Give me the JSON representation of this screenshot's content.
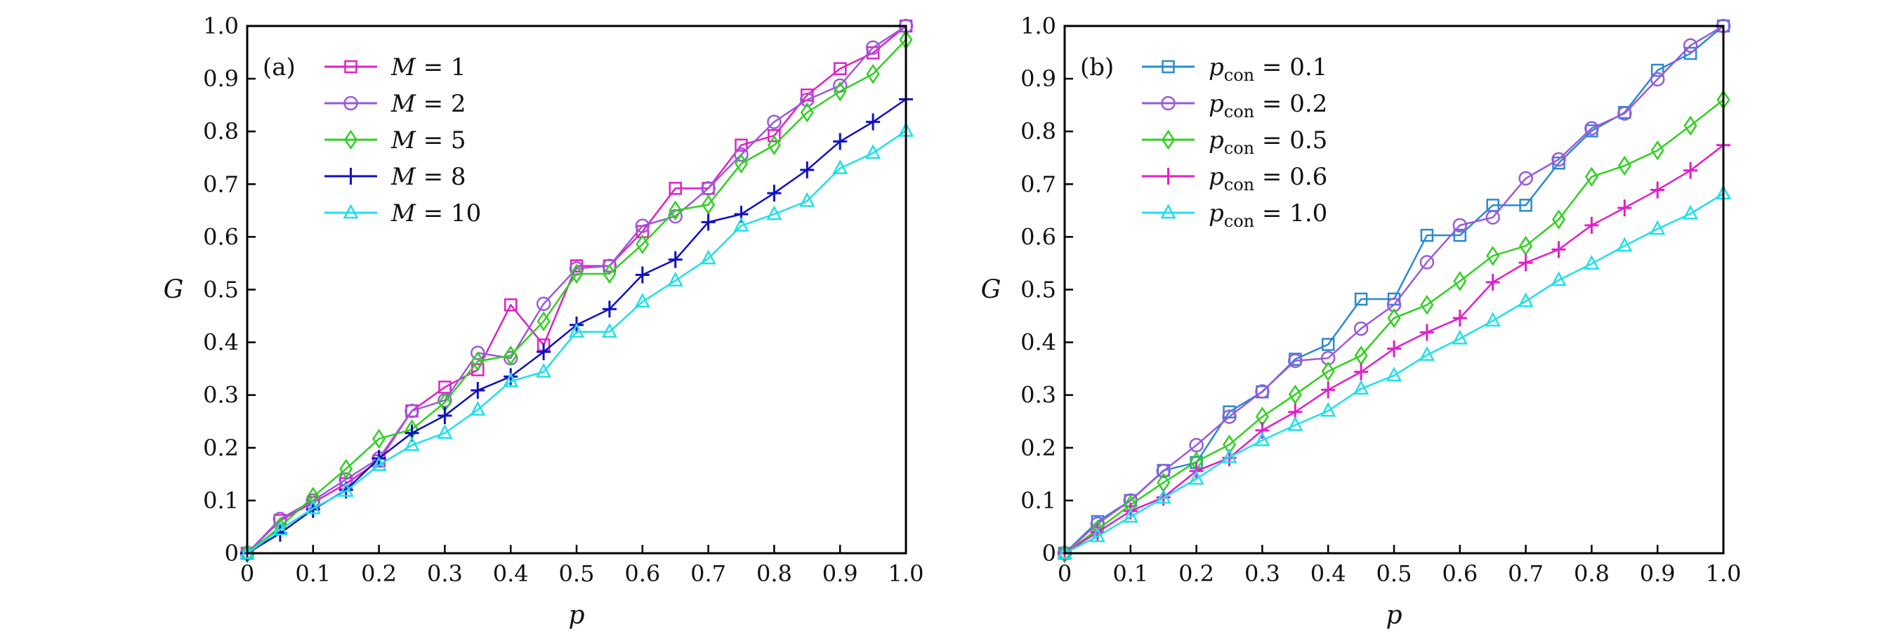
{
  "chart_data": [
    {
      "type": "line",
      "panel_tag": "(a)",
      "xlabel": "p",
      "ylabel": "G",
      "xlim": [
        0,
        1.0
      ],
      "ylim": [
        0,
        1.0
      ],
      "xticks": [
        "0",
        "0.1",
        "0.2",
        "0.3",
        "0.4",
        "0.5",
        "0.6",
        "0.7",
        "0.8",
        "0.9",
        "1.0"
      ],
      "yticks": [
        "0",
        "0.1",
        "0.2",
        "0.3",
        "0.4",
        "0.5",
        "0.6",
        "0.7",
        "0.8",
        "0.9",
        "1.0"
      ],
      "grid": false,
      "legend_position": "top-left",
      "x": [
        0,
        0.05,
        0.1,
        0.15,
        0.2,
        0.25,
        0.3,
        0.35,
        0.4,
        0.45,
        0.5,
        0.55,
        0.6,
        0.65,
        0.7,
        0.75,
        0.8,
        0.85,
        0.9,
        0.95,
        1.0
      ],
      "series": [
        {
          "name": "M = 1",
          "var": "M",
          "val": "1",
          "marker": "square",
          "color": "#e020c8",
          "values": [
            0,
            0.062,
            0.096,
            0.132,
            0.175,
            0.27,
            0.315,
            0.348,
            0.471,
            0.395,
            0.545,
            0.545,
            0.61,
            0.692,
            0.692,
            0.774,
            0.792,
            0.869,
            0.919,
            0.949,
            1.0
          ]
        },
        {
          "name": "M = 2",
          "var": "M",
          "val": "2",
          "marker": "circle",
          "color": "#9a5ad8",
          "values": [
            0,
            0.065,
            0.1,
            0.14,
            0.18,
            0.27,
            0.29,
            0.38,
            0.37,
            0.473,
            0.54,
            0.545,
            0.621,
            0.639,
            0.692,
            0.756,
            0.818,
            0.86,
            0.887,
            0.959,
            1.0
          ]
        },
        {
          "name": "M = 5",
          "var": "M",
          "val": "5",
          "marker": "diamond",
          "color": "#30d020",
          "values": [
            0,
            0.05,
            0.107,
            0.16,
            0.217,
            0.235,
            0.286,
            0.364,
            0.375,
            0.44,
            0.53,
            0.53,
            0.586,
            0.65,
            0.661,
            0.739,
            0.774,
            0.836,
            0.876,
            0.909,
            0.974
          ]
        },
        {
          "name": "M = 8",
          "var": "M",
          "val": "8",
          "marker": "plus",
          "color": "#1010c0",
          "values": [
            0,
            0.038,
            0.083,
            0.12,
            0.18,
            0.228,
            0.261,
            0.309,
            0.335,
            0.382,
            0.433,
            0.463,
            0.528,
            0.557,
            0.628,
            0.643,
            0.683,
            0.727,
            0.781,
            0.818,
            0.861
          ]
        },
        {
          "name": "M = 10",
          "var": "M",
          "val": "10",
          "marker": "triangle",
          "color": "#20e0e8",
          "values": [
            0,
            0.045,
            0.085,
            0.118,
            0.167,
            0.205,
            0.228,
            0.272,
            0.326,
            0.344,
            0.42,
            0.42,
            0.477,
            0.517,
            0.559,
            0.621,
            0.643,
            0.668,
            0.73,
            0.759,
            0.801
          ]
        }
      ]
    },
    {
      "type": "line",
      "panel_tag": "(b)",
      "xlabel": "p",
      "ylabel": "G",
      "xlim": [
        0,
        1.0
      ],
      "ylim": [
        0,
        1.0
      ],
      "xticks": [
        "0",
        "0.1",
        "0.2",
        "0.3",
        "0.4",
        "0.5",
        "0.6",
        "0.7",
        "0.8",
        "0.9",
        "1.0"
      ],
      "yticks": [
        "0",
        "0.1",
        "0.2",
        "0.3",
        "0.4",
        "0.5",
        "0.6",
        "0.7",
        "0.8",
        "0.9",
        "1.0"
      ],
      "grid": false,
      "legend_position": "top-left",
      "x": [
        0,
        0.05,
        0.1,
        0.15,
        0.2,
        0.25,
        0.3,
        0.35,
        0.4,
        0.45,
        0.5,
        0.55,
        0.6,
        0.65,
        0.7,
        0.75,
        0.8,
        0.85,
        0.9,
        0.95,
        1.0
      ],
      "series": [
        {
          "name": "p_con = 0.1",
          "var": "p",
          "sub": "con",
          "val": "0.1",
          "marker": "square",
          "color": "#2a8ad0",
          "values": [
            0,
            0.06,
            0.1,
            0.157,
            0.172,
            0.268,
            0.306,
            0.368,
            0.396,
            0.482,
            0.482,
            0.603,
            0.603,
            0.66,
            0.66,
            0.74,
            0.801,
            0.836,
            0.916,
            0.948,
            1.0
          ]
        },
        {
          "name": "p_con = 0.2",
          "var": "p",
          "sub": "con",
          "val": "0.2",
          "marker": "circle",
          "color": "#9a5ad8",
          "values": [
            0,
            0.056,
            0.1,
            0.156,
            0.205,
            0.259,
            0.307,
            0.365,
            0.37,
            0.426,
            0.471,
            0.552,
            0.622,
            0.637,
            0.711,
            0.747,
            0.806,
            0.834,
            0.899,
            0.963,
            1.0
          ]
        },
        {
          "name": "p_con = 0.5",
          "var": "p",
          "sub": "con",
          "val": "0.5",
          "marker": "diamond",
          "color": "#30d020",
          "values": [
            0,
            0.045,
            0.092,
            0.134,
            0.174,
            0.206,
            0.259,
            0.301,
            0.345,
            0.375,
            0.446,
            0.471,
            0.516,
            0.564,
            0.583,
            0.633,
            0.714,
            0.735,
            0.764,
            0.811,
            0.86
          ]
        },
        {
          "name": "p_con = 0.6",
          "var": "p",
          "sub": "con",
          "val": "0.6",
          "marker": "plus",
          "color": "#e020c8",
          "values": [
            0,
            0.04,
            0.08,
            0.106,
            0.156,
            0.181,
            0.233,
            0.268,
            0.31,
            0.344,
            0.388,
            0.419,
            0.446,
            0.514,
            0.551,
            0.576,
            0.622,
            0.655,
            0.689,
            0.726,
            0.774
          ]
        },
        {
          "name": "p_con = 1.0",
          "var": "p",
          "sub": "con",
          "val": "1.0",
          "marker": "triangle",
          "color": "#20e0e8",
          "values": [
            0,
            0.032,
            0.069,
            0.105,
            0.141,
            0.182,
            0.214,
            0.243,
            0.27,
            0.312,
            0.337,
            0.376,
            0.407,
            0.441,
            0.478,
            0.518,
            0.549,
            0.583,
            0.615,
            0.644,
            0.682
          ]
        }
      ]
    }
  ]
}
